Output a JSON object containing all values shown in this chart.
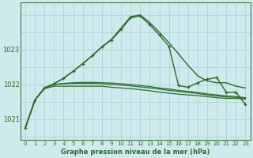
{
  "title": "Graphe pression niveau de la mer (hPa)",
  "background_color": "#ceeaed",
  "grid_color": "#aacfd4",
  "line_color": "#2d6a2d",
  "marker_color": "#2d6a2d",
  "ylabel_ticks": [
    1021,
    1022,
    1023
  ],
  "xlim": [
    -0.5,
    23.5
  ],
  "ylim": [
    1020.4,
    1024.35
  ],
  "series": [
    {
      "x": [
        0,
        1,
        2,
        3,
        4,
        5,
        6,
        7,
        8,
        9,
        10,
        11,
        12,
        13,
        14,
        15,
        16,
        17,
        18,
        19,
        20,
        21,
        22,
        23
      ],
      "y": [
        1020.75,
        1021.55,
        1021.88,
        1021.95,
        1021.95,
        1021.95,
        1021.95,
        1021.95,
        1021.95,
        1021.92,
        1021.9,
        1021.88,
        1021.85,
        1021.82,
        1021.78,
        1021.75,
        1021.72,
        1021.7,
        1021.68,
        1021.65,
        1021.62,
        1021.6,
        1021.6,
        1021.58
      ],
      "has_markers": false,
      "linewidth": 0.9
    },
    {
      "x": [
        0,
        1,
        2,
        3,
        4,
        5,
        6,
        7,
        8,
        9,
        10,
        11,
        12,
        13,
        14,
        15,
        16,
        17,
        18,
        19,
        20,
        21,
        22,
        23
      ],
      "y": [
        1020.75,
        1021.55,
        1021.9,
        1022.0,
        1022.02,
        1022.03,
        1022.03,
        1022.03,
        1022.02,
        1022.0,
        1021.98,
        1021.96,
        1021.93,
        1021.9,
        1021.87,
        1021.83,
        1021.8,
        1021.77,
        1021.74,
        1021.7,
        1021.67,
        1021.64,
        1021.63,
        1021.6
      ],
      "has_markers": false,
      "linewidth": 0.9
    },
    {
      "x": [
        0,
        1,
        2,
        3,
        4,
        5,
        6,
        7,
        8,
        9,
        10,
        11,
        12,
        13,
        14,
        15,
        16,
        17,
        18,
        19,
        20,
        21,
        22,
        23
      ],
      "y": [
        1020.75,
        1021.55,
        1021.9,
        1022.0,
        1022.03,
        1022.05,
        1022.06,
        1022.06,
        1022.05,
        1022.04,
        1022.02,
        1022.0,
        1021.97,
        1021.94,
        1021.9,
        1021.87,
        1021.83,
        1021.8,
        1021.77,
        1021.73,
        1021.7,
        1021.67,
        1021.65,
        1021.62
      ],
      "has_markers": false,
      "linewidth": 0.9
    },
    {
      "x": [
        0,
        1,
        2,
        3,
        4,
        5,
        6,
        7,
        8,
        9,
        10,
        11,
        12,
        13,
        14,
        15,
        16,
        17,
        18,
        19,
        20,
        21,
        22,
        23
      ],
      "y": [
        1020.75,
        1021.55,
        1021.9,
        1022.02,
        1022.18,
        1022.38,
        1022.6,
        1022.83,
        1023.08,
        1023.3,
        1023.62,
        1023.95,
        1024.0,
        1023.78,
        1023.5,
        1023.2,
        1022.88,
        1022.55,
        1022.25,
        1022.1,
        1022.05,
        1022.05,
        1021.95,
        1021.9
      ],
      "has_markers": false,
      "linewidth": 1.0
    },
    {
      "x": [
        0,
        1,
        2,
        3,
        4,
        5,
        6,
        7,
        8,
        9,
        10,
        11,
        12,
        13,
        14,
        15,
        16,
        17,
        18,
        19,
        20,
        21,
        22,
        23
      ],
      "y": [
        1020.75,
        1021.55,
        1021.9,
        1022.02,
        1022.18,
        1022.38,
        1022.6,
        1022.83,
        1023.08,
        1023.28,
        1023.58,
        1023.92,
        1023.97,
        1023.72,
        1023.42,
        1023.1,
        1021.97,
        1021.92,
        1022.05,
        1022.15,
        1022.2,
        1021.77,
        1021.78,
        1021.42
      ],
      "has_markers": true,
      "linewidth": 1.0
    }
  ]
}
